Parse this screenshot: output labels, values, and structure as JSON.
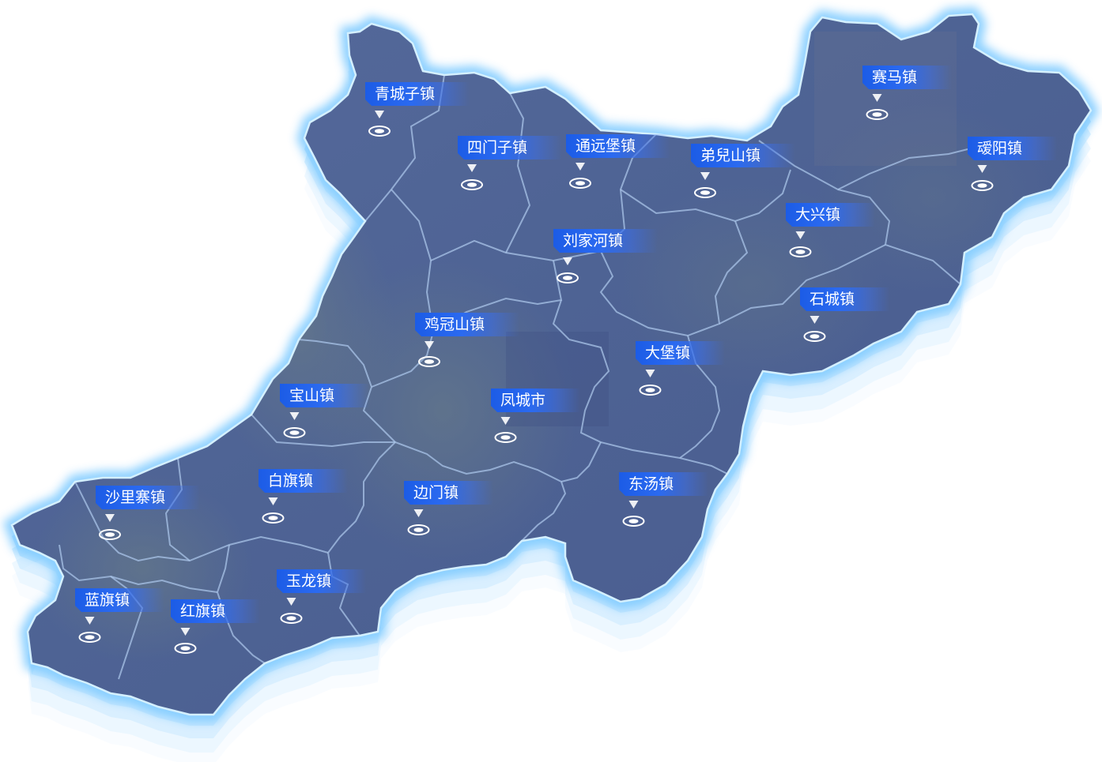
{
  "map": {
    "colors": {
      "region_fill": "#4d5f94",
      "region_fill_light": "#5d7099",
      "border_glow": "#8fd3ff",
      "border_line": "#b9e6ff",
      "inner_border": "#a9c4e8",
      "label_bg": "#1c5ce6",
      "label_text": "#ffffff",
      "pin": "#ffffff"
    },
    "labels": [
      {
        "name": "青城子镇",
        "icon": "location-pin-icon"
      },
      {
        "name": "四门子镇",
        "icon": "location-pin-icon"
      },
      {
        "name": "通远堡镇",
        "icon": "location-pin-icon"
      },
      {
        "name": "弟兒山镇",
        "icon": "location-pin-icon"
      },
      {
        "name": "赛马镇",
        "icon": "location-pin-icon"
      },
      {
        "name": "叆阳镇",
        "icon": "location-pin-icon"
      },
      {
        "name": "大兴镇",
        "icon": "location-pin-icon"
      },
      {
        "name": "刘家河镇",
        "icon": "location-pin-icon"
      },
      {
        "name": "石城镇",
        "icon": "location-pin-icon"
      },
      {
        "name": "鸡冠山镇",
        "icon": "location-pin-icon"
      },
      {
        "name": "大堡镇",
        "icon": "location-pin-icon"
      },
      {
        "name": "宝山镇",
        "icon": "location-pin-icon"
      },
      {
        "name": "凤城市",
        "icon": "location-pin-icon"
      },
      {
        "name": "沙里寨镇",
        "icon": "location-pin-icon"
      },
      {
        "name": "白旗镇",
        "icon": "location-pin-icon"
      },
      {
        "name": "边门镇",
        "icon": "location-pin-icon"
      },
      {
        "name": "东汤镇",
        "icon": "location-pin-icon"
      },
      {
        "name": "蓝旗镇",
        "icon": "location-pin-icon"
      },
      {
        "name": "红旗镇",
        "icon": "location-pin-icon"
      },
      {
        "name": "玉龙镇",
        "icon": "location-pin-icon"
      }
    ]
  }
}
